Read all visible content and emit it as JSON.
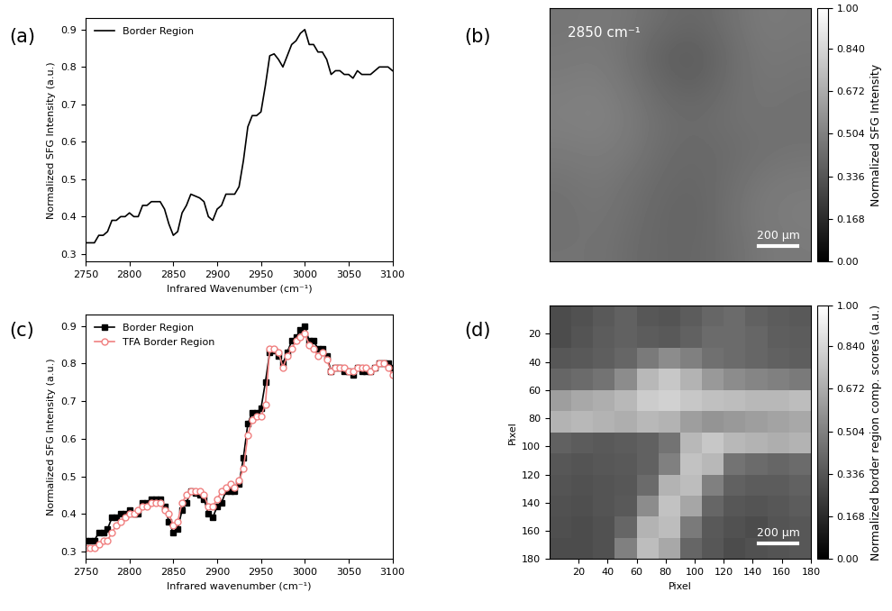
{
  "chart_data": [
    {
      "type": "line",
      "label": "(a)",
      "x_label": "Infrared Wavenumber (cm⁻¹)",
      "y_label": "Normalized SFG Intensity (a.u.)",
      "x": [
        2750,
        2755,
        2760,
        2765,
        2770,
        2775,
        2780,
        2785,
        2790,
        2795,
        2800,
        2805,
        2810,
        2815,
        2820,
        2825,
        2830,
        2835,
        2840,
        2845,
        2850,
        2855,
        2860,
        2865,
        2870,
        2875,
        2880,
        2885,
        2890,
        2895,
        2900,
        2905,
        2910,
        2915,
        2920,
        2925,
        2930,
        2935,
        2940,
        2945,
        2950,
        2955,
        2960,
        2965,
        2970,
        2975,
        2980,
        2985,
        2990,
        2995,
        3000,
        3005,
        3010,
        3015,
        3020,
        3025,
        3030,
        3035,
        3040,
        3045,
        3050,
        3055,
        3060,
        3065,
        3070,
        3075,
        3080,
        3085,
        3090,
        3095,
        3100
      ],
      "series": [
        {
          "name": "Border Region",
          "color": "#000000",
          "line_style": "solid",
          "marker": "none",
          "values": [
            0.33,
            0.33,
            0.33,
            0.35,
            0.35,
            0.36,
            0.39,
            0.39,
            0.4,
            0.4,
            0.41,
            0.4,
            0.4,
            0.43,
            0.43,
            0.44,
            0.44,
            0.44,
            0.42,
            0.38,
            0.35,
            0.36,
            0.41,
            0.43,
            0.46,
            0.455,
            0.45,
            0.44,
            0.4,
            0.39,
            0.42,
            0.43,
            0.46,
            0.46,
            0.46,
            0.48,
            0.55,
            0.64,
            0.67,
            0.67,
            0.68,
            0.75,
            0.83,
            0.835,
            0.82,
            0.8,
            0.83,
            0.86,
            0.87,
            0.89,
            0.9,
            0.86,
            0.86,
            0.84,
            0.84,
            0.82,
            0.78,
            0.79,
            0.79,
            0.78,
            0.78,
            0.77,
            0.79,
            0.78,
            0.78,
            0.78,
            0.79,
            0.8,
            0.8,
            0.8,
            0.79
          ]
        }
      ],
      "xlim": [
        2750,
        3100
      ],
      "xticks": [
        2750,
        2800,
        2850,
        2900,
        2950,
        3000,
        3050,
        3100
      ],
      "ylim": [
        0.28,
        0.93
      ],
      "yticks": [
        0.3,
        0.4,
        0.5,
        0.6,
        0.7,
        0.8,
        0.9
      ],
      "legend": "upper left"
    },
    {
      "type": "heatmap",
      "label": "(b)",
      "annotation": "2850 cm⁻¹",
      "scale_bar": "200 µm",
      "tick_labels": false,
      "color": "gray",
      "cells": [
        [
          0.46,
          0.47,
          0.46,
          0.42,
          0.4,
          0.44,
          0.48,
          0.47
        ],
        [
          0.47,
          0.48,
          0.44,
          0.37,
          0.36,
          0.42,
          0.47,
          0.46
        ],
        [
          0.49,
          0.5,
          0.46,
          0.4,
          0.38,
          0.43,
          0.46,
          0.45
        ],
        [
          0.5,
          0.51,
          0.48,
          0.43,
          0.42,
          0.44,
          0.45,
          0.44
        ],
        [
          0.48,
          0.49,
          0.47,
          0.42,
          0.41,
          0.42,
          0.44,
          0.45
        ],
        [
          0.45,
          0.47,
          0.44,
          0.41,
          0.4,
          0.43,
          0.47,
          0.48
        ],
        [
          0.44,
          0.46,
          0.43,
          0.4,
          0.39,
          0.44,
          0.48,
          0.49
        ],
        [
          0.45,
          0.45,
          0.42,
          0.4,
          0.4,
          0.43,
          0.47,
          0.48
        ]
      ],
      "colorbar_label": "Normalized SFG Intensity",
      "colorbar_lim": [
        0,
        1
      ],
      "colorbar_ticks": [
        {
          "value": 0,
          "label": "0.00"
        },
        0.168,
        0.336,
        0.504,
        0.672,
        {
          "value": 0.84,
          "label": "0.840"
        },
        {
          "value": 1,
          "label": "1.00"
        }
      ]
    },
    {
      "type": "line",
      "label": "(c)",
      "x_label": "Infrared wavenumber (cm⁻¹)",
      "y_label": "Normalized SFG Intensity (a.u.)",
      "x": [
        2750,
        2755,
        2760,
        2765,
        2770,
        2775,
        2780,
        2785,
        2790,
        2795,
        2800,
        2805,
        2810,
        2815,
        2820,
        2825,
        2830,
        2835,
        2840,
        2845,
        2850,
        2855,
        2860,
        2865,
        2870,
        2875,
        2880,
        2885,
        2890,
        2895,
        2900,
        2905,
        2910,
        2915,
        2920,
        2925,
        2930,
        2935,
        2940,
        2945,
        2950,
        2955,
        2960,
        2965,
        2970,
        2975,
        2980,
        2985,
        2990,
        2995,
        3000,
        3005,
        3010,
        3015,
        3020,
        3025,
        3030,
        3035,
        3040,
        3045,
        3050,
        3055,
        3060,
        3065,
        3070,
        3075,
        3080,
        3085,
        3090,
        3095,
        3100
      ],
      "series": [
        {
          "name": "Border Region",
          "color": "#000000",
          "line_style": "solid",
          "marker": "square",
          "values": [
            0.33,
            0.33,
            0.33,
            0.35,
            0.35,
            0.36,
            0.39,
            0.39,
            0.4,
            0.4,
            0.41,
            0.4,
            0.4,
            0.43,
            0.43,
            0.44,
            0.44,
            0.44,
            0.42,
            0.38,
            0.35,
            0.36,
            0.41,
            0.43,
            0.46,
            0.455,
            0.45,
            0.44,
            0.4,
            0.39,
            0.42,
            0.43,
            0.46,
            0.46,
            0.46,
            0.48,
            0.55,
            0.64,
            0.67,
            0.67,
            0.68,
            0.75,
            0.83,
            0.835,
            0.82,
            0.8,
            0.83,
            0.86,
            0.87,
            0.89,
            0.9,
            0.86,
            0.86,
            0.84,
            0.84,
            0.82,
            0.78,
            0.79,
            0.79,
            0.78,
            0.78,
            0.77,
            0.79,
            0.78,
            0.78,
            0.78,
            0.79,
            0.8,
            0.8,
            0.8,
            0.79
          ]
        },
        {
          "name": "TFA Border Region",
          "color": "#f08080",
          "line_style": "solid",
          "marker": "open_circle",
          "values": [
            0.31,
            0.31,
            0.31,
            0.32,
            0.33,
            0.33,
            0.35,
            0.37,
            0.38,
            0.39,
            0.4,
            0.4,
            0.41,
            0.42,
            0.42,
            0.43,
            0.43,
            0.43,
            0.41,
            0.4,
            0.37,
            0.38,
            0.43,
            0.45,
            0.46,
            0.46,
            0.46,
            0.45,
            0.42,
            0.42,
            0.44,
            0.46,
            0.47,
            0.48,
            0.47,
            0.49,
            0.52,
            0.61,
            0.65,
            0.66,
            0.66,
            0.69,
            0.84,
            0.84,
            0.83,
            0.79,
            0.82,
            0.84,
            0.86,
            0.87,
            0.88,
            0.85,
            0.84,
            0.82,
            0.83,
            0.81,
            0.78,
            0.79,
            0.79,
            0.79,
            0.78,
            0.78,
            0.79,
            0.79,
            0.79,
            0.78,
            0.79,
            0.8,
            0.8,
            0.79,
            0.77
          ]
        }
      ],
      "xlim": [
        2750,
        3100
      ],
      "xticks": [
        2750,
        2800,
        2850,
        2900,
        2950,
        3000,
        3050,
        3100
      ],
      "ylim": [
        0.28,
        0.93
      ],
      "yticks": [
        0.3,
        0.4,
        0.5,
        0.6,
        0.7,
        0.8,
        0.9
      ],
      "legend": "upper left"
    },
    {
      "type": "heatmap",
      "label": "(d)",
      "scale_bar": "200 µm",
      "color": "gray",
      "x_label": "Pixel",
      "y_label": "Pixel",
      "xlim": [
        0,
        180
      ],
      "xticks": [
        20,
        40,
        60,
        80,
        100,
        120,
        140,
        160,
        180
      ],
      "ylim": [
        180,
        0
      ],
      "yticks": [
        20,
        40,
        60,
        80,
        100,
        120,
        140,
        160,
        180
      ],
      "cells": [
        [
          0.3,
          0.32,
          0.35,
          0.38,
          0.34,
          0.33,
          0.36,
          0.4,
          0.42,
          0.38,
          0.36,
          0.35
        ],
        [
          0.3,
          0.33,
          0.36,
          0.38,
          0.36,
          0.35,
          0.38,
          0.42,
          0.42,
          0.4,
          0.37,
          0.36
        ],
        [
          0.34,
          0.35,
          0.37,
          0.4,
          0.48,
          0.55,
          0.5,
          0.44,
          0.42,
          0.4,
          0.38,
          0.37
        ],
        [
          0.4,
          0.42,
          0.45,
          0.55,
          0.72,
          0.78,
          0.7,
          0.6,
          0.55,
          0.52,
          0.5,
          0.48
        ],
        [
          0.62,
          0.66,
          0.68,
          0.72,
          0.8,
          0.82,
          0.78,
          0.75,
          0.74,
          0.72,
          0.72,
          0.74
        ],
        [
          0.7,
          0.72,
          0.7,
          0.68,
          0.72,
          0.7,
          0.62,
          0.58,
          0.6,
          0.62,
          0.64,
          0.66
        ],
        [
          0.38,
          0.36,
          0.35,
          0.36,
          0.38,
          0.45,
          0.72,
          0.78,
          0.72,
          0.7,
          0.68,
          0.7
        ],
        [
          0.34,
          0.33,
          0.34,
          0.35,
          0.38,
          0.5,
          0.76,
          0.72,
          0.45,
          0.42,
          0.4,
          0.42
        ],
        [
          0.33,
          0.32,
          0.33,
          0.34,
          0.42,
          0.7,
          0.74,
          0.5,
          0.38,
          0.36,
          0.36,
          0.38
        ],
        [
          0.32,
          0.31,
          0.33,
          0.35,
          0.55,
          0.76,
          0.65,
          0.4,
          0.34,
          0.33,
          0.34,
          0.36
        ],
        [
          0.31,
          0.3,
          0.32,
          0.4,
          0.7,
          0.74,
          0.48,
          0.35,
          0.32,
          0.3,
          0.33,
          0.34
        ],
        [
          0.3,
          0.3,
          0.32,
          0.5,
          0.74,
          0.66,
          0.4,
          0.34,
          0.3,
          0.32,
          0.33,
          0.34
        ]
      ],
      "colorbar_label": "Normalized border region comp. scores (a.u.)",
      "colorbar_lim": [
        0,
        1
      ],
      "colorbar_ticks": [
        {
          "value": 0,
          "label": "0.00"
        },
        0.168,
        0.336,
        0.504,
        0.672,
        {
          "value": 0.84,
          "label": "0.840"
        },
        {
          "value": 1,
          "label": "1.00"
        }
      ]
    }
  ]
}
